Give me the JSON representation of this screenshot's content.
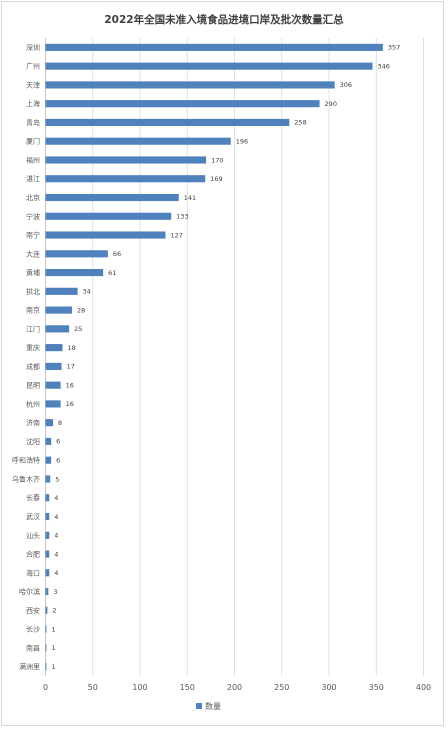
{
  "chart_data": {
    "type": "bar",
    "orientation": "horizontal",
    "title": "2022年全国未准入境食品进境口岸及批次数量汇总",
    "categories": [
      "深圳",
      "广州",
      "天津",
      "上海",
      "青岛",
      "厦门",
      "福州",
      "湛江",
      "北京",
      "宁波",
      "南宁",
      "大连",
      "黄埔",
      "拱北",
      "南京",
      "江门",
      "重庆",
      "成都",
      "昆明",
      "杭州",
      "济南",
      "沈阳",
      "呼和浩特",
      "乌鲁木齐",
      "长春",
      "武汉",
      "汕头",
      "合肥",
      "海口",
      "哈尔滨",
      "西安",
      "长沙",
      "南昌",
      "满洲里"
    ],
    "series": [
      {
        "name": "数量",
        "values": [
          357,
          346,
          306,
          290,
          258,
          196,
          170,
          169,
          141,
          133,
          127,
          66,
          61,
          34,
          28,
          25,
          18,
          17,
          16,
          16,
          8,
          6,
          6,
          5,
          4,
          4,
          4,
          4,
          4,
          3,
          2,
          1,
          1,
          1
        ],
        "color": "#4f81bd"
      }
    ],
    "xlim": [
      0,
      400
    ],
    "xticks": [
      0,
      50,
      100,
      150,
      200,
      250,
      300,
      350,
      400
    ],
    "grid": true,
    "legend_position": "bottom"
  }
}
